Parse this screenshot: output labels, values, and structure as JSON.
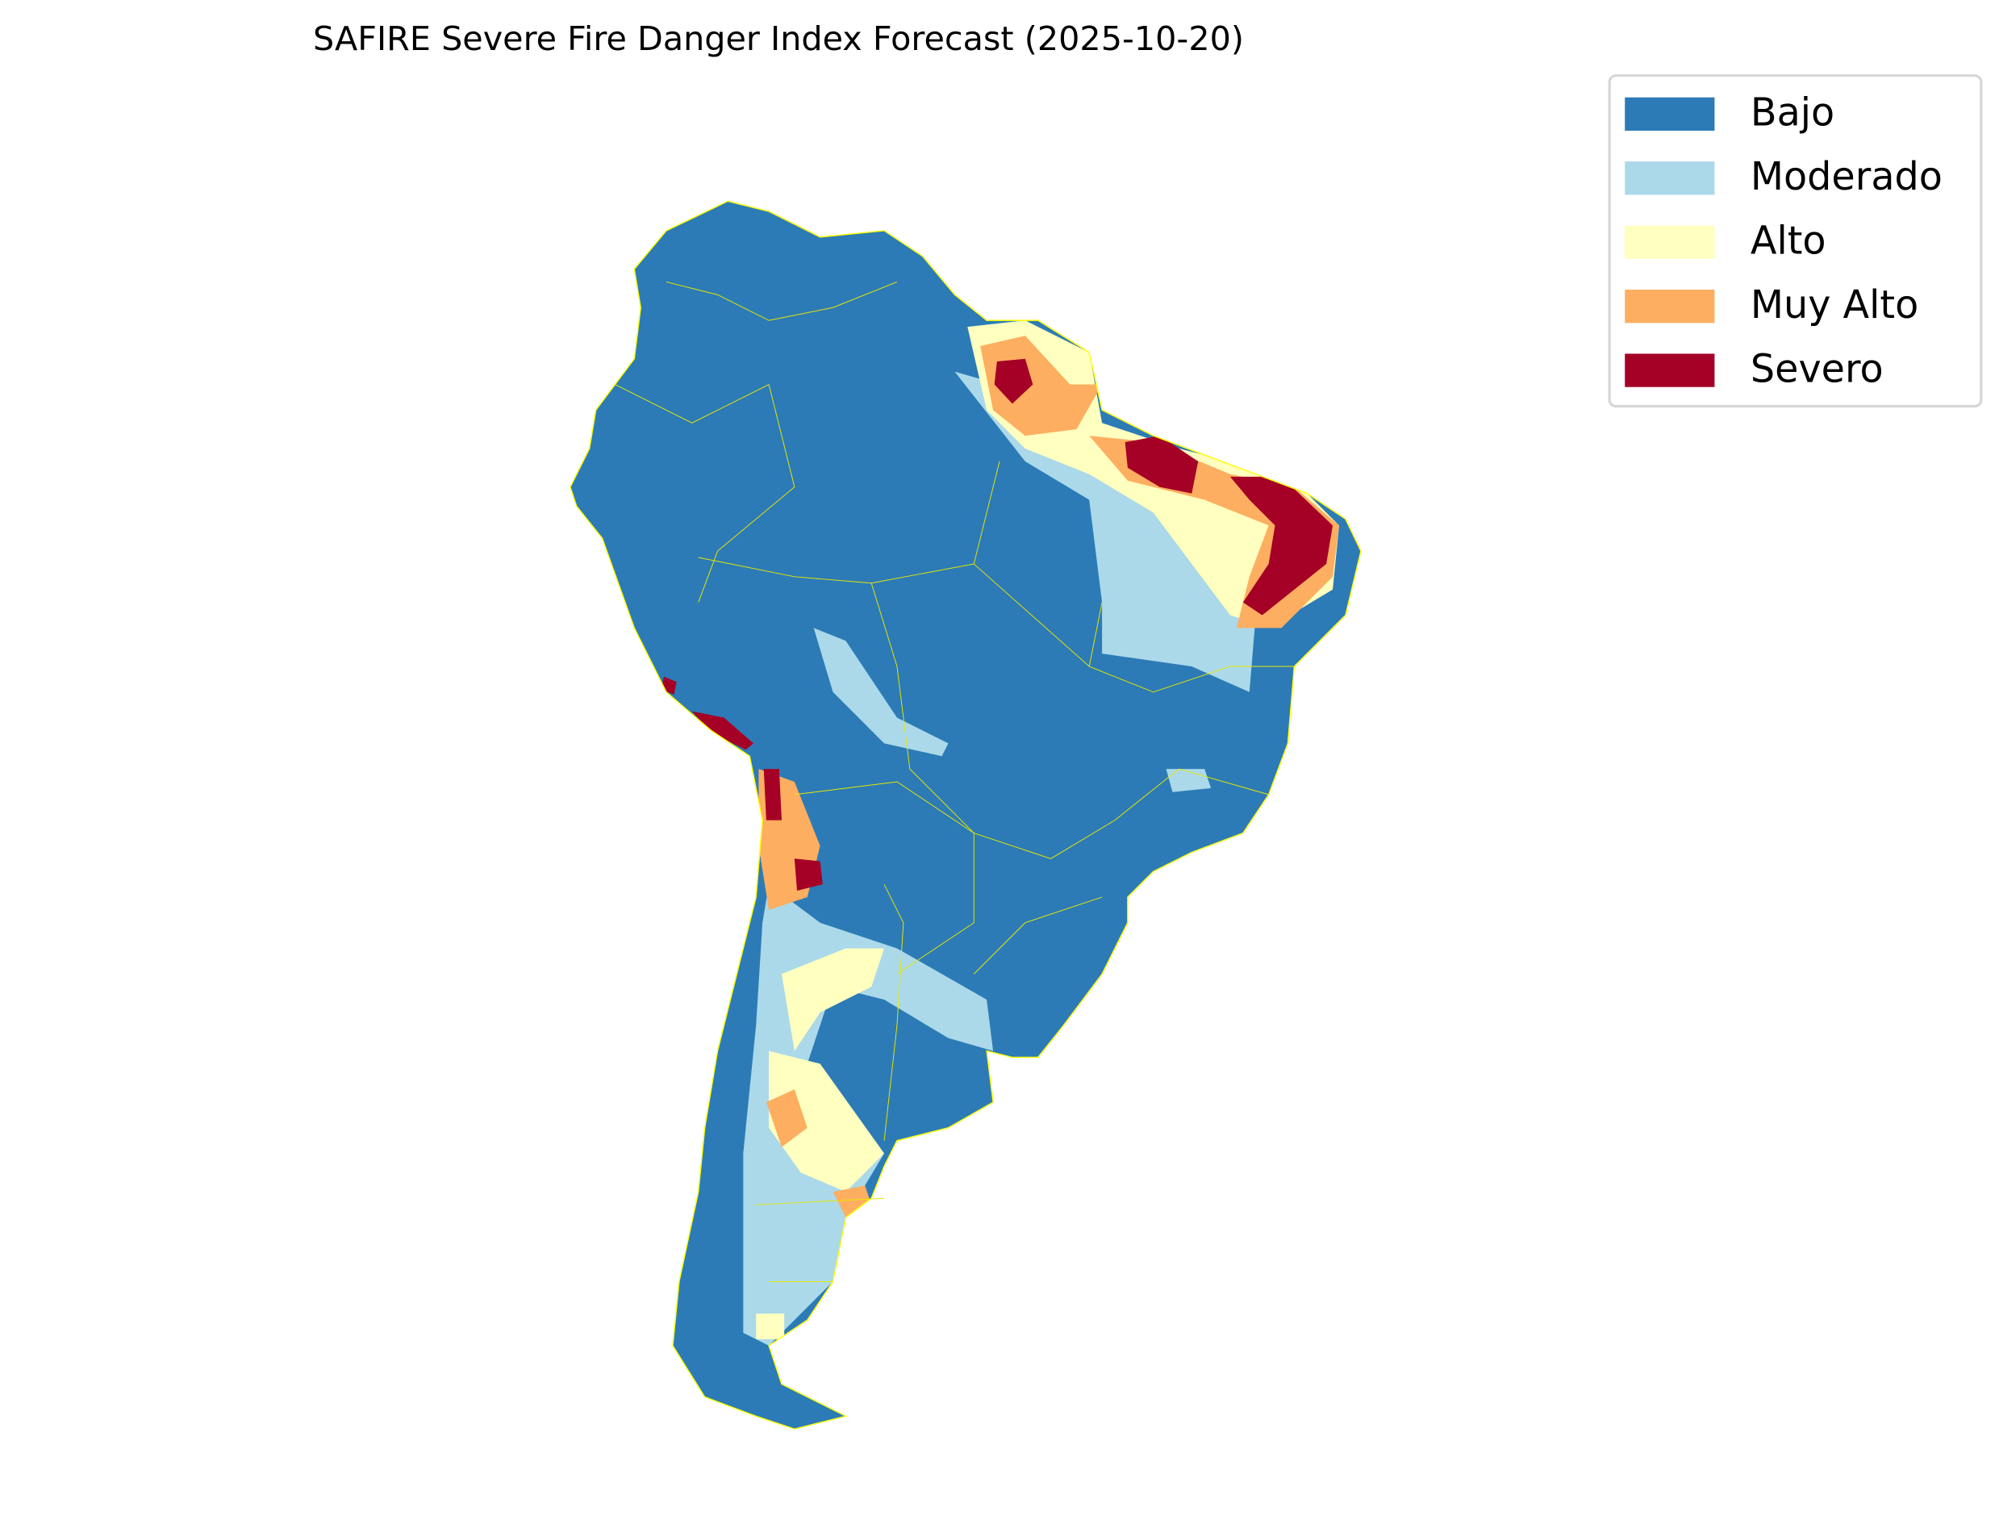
{
  "title": "SAFIRE Severe Fire Danger Index Forecast (2025-10-20)",
  "legend": {
    "placement": "upper-right",
    "items": [
      {
        "label": "Bajo",
        "color": "#2c7bb6"
      },
      {
        "label": "Moderado",
        "color": "#abd9e9"
      },
      {
        "label": "Alto",
        "color": "#ffffbf"
      },
      {
        "label": "Muy Alto",
        "color": "#fdae61"
      },
      {
        "label": "Severo",
        "color": "#a50026"
      }
    ]
  },
  "map": {
    "region": "South America",
    "boundary_color": "#ffff00"
  }
}
